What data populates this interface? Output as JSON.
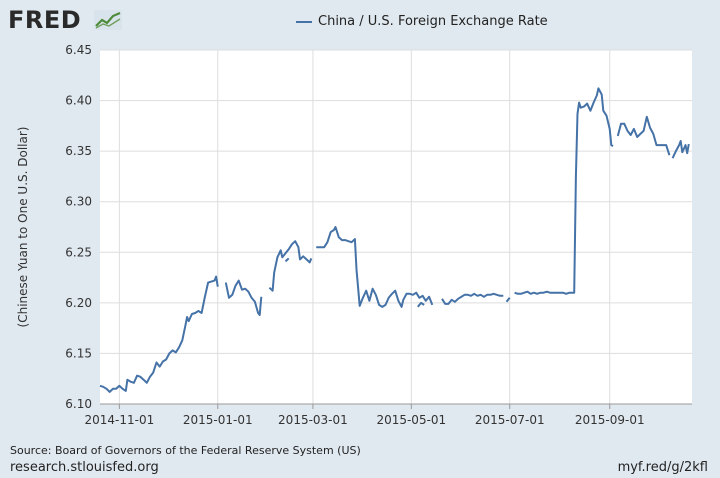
{
  "logo": {
    "text": "FRED"
  },
  "colors": {
    "line": "#4572a7",
    "background": "#e1e9f0",
    "plot": "#ffffff",
    "grid": "#dddddd"
  },
  "footer": {
    "source": "Source: Board of Governors of the Federal Reserve System (US)",
    "site": "research.stlouisfed.org",
    "shortlink": "myf.red/g/2kfl"
  },
  "chart_data": {
    "type": "line",
    "title": "",
    "ylabel": "(Chinese Yuan to One U.S. Dollar)",
    "xlabel": "",
    "ylim": [
      6.1,
      6.45
    ],
    "xlim": [
      "2014-10-20",
      "2015-10-22"
    ],
    "yticks": [
      6.1,
      6.15,
      6.2,
      6.25,
      6.3,
      6.35,
      6.4,
      6.45
    ],
    "ytick_labels": [
      "6.10",
      "6.15",
      "6.20",
      "6.25",
      "6.30",
      "6.35",
      "6.40",
      "6.45"
    ],
    "xticks": [
      "2014-11-01",
      "2015-01-01",
      "2015-03-01",
      "2015-05-01",
      "2015-07-01",
      "2015-09-01"
    ],
    "grid": true,
    "legend": "top-center",
    "series": [
      {
        "name": "China / U.S. Foreign Exchange Rate",
        "segments": [
          [
            [
              "2014-10-20",
              6.118
            ],
            [
              "2014-10-22",
              6.117
            ],
            [
              "2014-10-24",
              6.115
            ],
            [
              "2014-10-26",
              6.112
            ],
            [
              "2014-10-28",
              6.115
            ],
            [
              "2014-10-30",
              6.115
            ],
            [
              "2014-11-01",
              6.118
            ],
            [
              "2014-11-03",
              6.115
            ],
            [
              "2014-11-05",
              6.113
            ],
            [
              "2014-11-06",
              6.124
            ],
            [
              "2014-11-08",
              6.122
            ],
            [
              "2014-11-10",
              6.121
            ],
            [
              "2014-11-12",
              6.128
            ],
            [
              "2014-11-14",
              6.127
            ],
            [
              "2014-11-16",
              6.124
            ],
            [
              "2014-11-18",
              6.121
            ],
            [
              "2014-11-20",
              6.127
            ],
            [
              "2014-11-22",
              6.131
            ],
            [
              "2014-11-24",
              6.141
            ],
            [
              "2014-11-26",
              6.137
            ],
            [
              "2014-11-28",
              6.142
            ],
            [
              "2014-11-30",
              6.144
            ],
            [
              "2014-12-02",
              6.15
            ],
            [
              "2014-12-04",
              6.153
            ],
            [
              "2014-12-06",
              6.151
            ],
            [
              "2014-12-08",
              6.156
            ],
            [
              "2014-12-10",
              6.163
            ],
            [
              "2014-12-12",
              6.178
            ],
            [
              "2014-12-13",
              6.186
            ],
            [
              "2014-12-14",
              6.182
            ],
            [
              "2014-12-16",
              6.189
            ],
            [
              "2014-12-18",
              6.19
            ],
            [
              "2014-12-20",
              6.192
            ],
            [
              "2014-12-22",
              6.19
            ],
            [
              "2014-12-24",
              6.206
            ],
            [
              "2014-12-26",
              6.22
            ],
            [
              "2014-12-28",
              6.221
            ],
            [
              "2014-12-30",
              6.222
            ],
            [
              "2014-12-31",
              6.226
            ],
            [
              "2015-01-01",
              6.216
            ]
          ],
          [
            [
              "2015-01-06",
              6.22
            ],
            [
              "2015-01-08",
              6.205
            ],
            [
              "2015-01-10",
              6.208
            ],
            [
              "2015-01-12",
              6.217
            ],
            [
              "2015-01-14",
              6.222
            ],
            [
              "2015-01-16",
              6.213
            ],
            [
              "2015-01-18",
              6.214
            ],
            [
              "2015-01-20",
              6.211
            ],
            [
              "2015-01-22",
              6.205
            ],
            [
              "2015-01-24",
              6.201
            ],
            [
              "2015-01-26",
              6.19
            ],
            [
              "2015-01-27",
              6.188
            ],
            [
              "2015-01-28",
              6.206
            ]
          ],
          [
            [
              "2015-02-02",
              6.215
            ],
            [
              "2015-02-04",
              6.212
            ],
            [
              "2015-02-05",
              6.23
            ],
            [
              "2015-02-07",
              6.245
            ],
            [
              "2015-02-09",
              6.252
            ],
            [
              "2015-02-10",
              6.245
            ],
            [
              "2015-02-12",
              6.249
            ],
            [
              "2015-02-14",
              6.253
            ],
            [
              "2015-02-16",
              6.258
            ],
            [
              "2015-02-18",
              6.261
            ],
            [
              "2015-02-20",
              6.255
            ],
            [
              "2015-02-21",
              6.243
            ],
            [
              "2015-02-23",
              6.246
            ],
            [
              "2015-02-25",
              6.243
            ],
            [
              "2015-02-27",
              6.24
            ],
            [
              "2015-02-28",
              6.244
            ]
          ],
          [
            [
              "2015-02-12",
              6.241
            ],
            [
              "2015-02-14",
              6.244
            ]
          ],
          [
            [
              "2015-03-03",
              6.255
            ],
            [
              "2015-03-06",
              6.255
            ],
            [
              "2015-03-08",
              6.255
            ],
            [
              "2015-03-10",
              6.26
            ],
            [
              "2015-03-12",
              6.27
            ],
            [
              "2015-03-14",
              6.272
            ],
            [
              "2015-03-15",
              6.275
            ],
            [
              "2015-03-17",
              6.265
            ],
            [
              "2015-03-19",
              6.262
            ],
            [
              "2015-03-21",
              6.262
            ],
            [
              "2015-03-23",
              6.261
            ],
            [
              "2015-03-25",
              6.26
            ],
            [
              "2015-03-27",
              6.263
            ],
            [
              "2015-03-28",
              6.233
            ],
            [
              "2015-03-30",
              6.197
            ],
            [
              "2015-04-01",
              6.205
            ],
            [
              "2015-04-03",
              6.212
            ],
            [
              "2015-04-05",
              6.202
            ],
            [
              "2015-04-07",
              6.214
            ],
            [
              "2015-04-09",
              6.208
            ],
            [
              "2015-04-11",
              6.198
            ],
            [
              "2015-04-13",
              6.196
            ],
            [
              "2015-04-15",
              6.198
            ],
            [
              "2015-04-17",
              6.205
            ],
            [
              "2015-04-19",
              6.209
            ],
            [
              "2015-04-21",
              6.212
            ],
            [
              "2015-04-23",
              6.202
            ],
            [
              "2015-04-25",
              6.196
            ],
            [
              "2015-04-26",
              6.203
            ],
            [
              "2015-04-28",
              6.209
            ],
            [
              "2015-04-30",
              6.209
            ],
            [
              "2015-05-02",
              6.208
            ],
            [
              "2015-05-04",
              6.21
            ],
            [
              "2015-05-06",
              6.205
            ],
            [
              "2015-05-08",
              6.207
            ],
            [
              "2015-05-10",
              6.202
            ],
            [
              "2015-05-12",
              6.206
            ],
            [
              "2015-05-14",
              6.198
            ]
          ],
          [
            [
              "2015-05-05",
              6.196
            ],
            [
              "2015-05-07",
              6.2
            ],
            [
              "2015-05-09",
              6.198
            ]
          ],
          [
            [
              "2015-05-20",
              6.204
            ],
            [
              "2015-05-22",
              6.199
            ],
            [
              "2015-05-24",
              6.199
            ],
            [
              "2015-05-26",
              6.203
            ],
            [
              "2015-05-28",
              6.201
            ],
            [
              "2015-05-30",
              6.204
            ],
            [
              "2015-06-01",
              6.206
            ],
            [
              "2015-06-03",
              6.208
            ],
            [
              "2015-06-05",
              6.208
            ],
            [
              "2015-06-07",
              6.207
            ],
            [
              "2015-06-09",
              6.209
            ],
            [
              "2015-06-11",
              6.207
            ],
            [
              "2015-06-13",
              6.208
            ],
            [
              "2015-06-15",
              6.206
            ],
            [
              "2015-06-17",
              6.208
            ],
            [
              "2015-06-19",
              6.208
            ],
            [
              "2015-06-21",
              6.209
            ],
            [
              "2015-06-23",
              6.208
            ],
            [
              "2015-06-25",
              6.207
            ],
            [
              "2015-06-27",
              6.207
            ]
          ],
          [
            [
              "2015-06-29",
              6.201
            ],
            [
              "2015-07-01",
              6.205
            ]
          ],
          [
            [
              "2015-07-04",
              6.21
            ],
            [
              "2015-07-06",
              6.209
            ],
            [
              "2015-07-08",
              6.209
            ],
            [
              "2015-07-10",
              6.21
            ],
            [
              "2015-07-12",
              6.211
            ],
            [
              "2015-07-14",
              6.209
            ],
            [
              "2015-07-16",
              6.21
            ],
            [
              "2015-07-18",
              6.209
            ],
            [
              "2015-07-20",
              6.21
            ],
            [
              "2015-07-22",
              6.21
            ],
            [
              "2015-07-24",
              6.211
            ],
            [
              "2015-07-26",
              6.21
            ],
            [
              "2015-07-28",
              6.21
            ],
            [
              "2015-07-30",
              6.21
            ],
            [
              "2015-08-01",
              6.21
            ],
            [
              "2015-08-03",
              6.21
            ],
            [
              "2015-08-05",
              6.209
            ],
            [
              "2015-08-07",
              6.21
            ],
            [
              "2015-08-09",
              6.21
            ],
            [
              "2015-08-10",
              6.21
            ],
            [
              "2015-08-11",
              6.325
            ],
            [
              "2015-08-12",
              6.387
            ],
            [
              "2015-08-13",
              6.398
            ],
            [
              "2015-08-14",
              6.393
            ],
            [
              "2015-08-16",
              6.394
            ],
            [
              "2015-08-18",
              6.397
            ],
            [
              "2015-08-20",
              6.39
            ],
            [
              "2015-08-22",
              6.398
            ],
            [
              "2015-08-24",
              6.405
            ],
            [
              "2015-08-25",
              6.412
            ],
            [
              "2015-08-27",
              6.406
            ],
            [
              "2015-08-28",
              6.39
            ],
            [
              "2015-08-30",
              6.385
            ],
            [
              "2015-09-01",
              6.372
            ],
            [
              "2015-09-02",
              6.356
            ],
            [
              "2015-09-03",
              6.355
            ]
          ],
          [
            [
              "2015-09-06",
              6.365
            ],
            [
              "2015-09-08",
              6.377
            ],
            [
              "2015-09-10",
              6.377
            ],
            [
              "2015-09-12",
              6.37
            ],
            [
              "2015-09-14",
              6.366
            ],
            [
              "2015-09-16",
              6.372
            ],
            [
              "2015-09-18",
              6.364
            ],
            [
              "2015-09-20",
              6.367
            ],
            [
              "2015-09-22",
              6.37
            ],
            [
              "2015-09-24",
              6.384
            ],
            [
              "2015-09-26",
              6.373
            ],
            [
              "2015-09-28",
              6.367
            ],
            [
              "2015-09-30",
              6.356
            ],
            [
              "2015-10-02",
              6.356
            ],
            [
              "2015-10-04",
              6.356
            ],
            [
              "2015-10-06",
              6.356
            ],
            [
              "2015-10-08",
              6.346
            ]
          ],
          [
            [
              "2015-10-10",
              6.343
            ],
            [
              "2015-10-12",
              6.35
            ],
            [
              "2015-10-14",
              6.356
            ],
            [
              "2015-10-15",
              6.36
            ],
            [
              "2015-10-16",
              6.349
            ],
            [
              "2015-10-18",
              6.356
            ],
            [
              "2015-10-19",
              6.348
            ],
            [
              "2015-10-20",
              6.357
            ]
          ]
        ]
      }
    ]
  }
}
